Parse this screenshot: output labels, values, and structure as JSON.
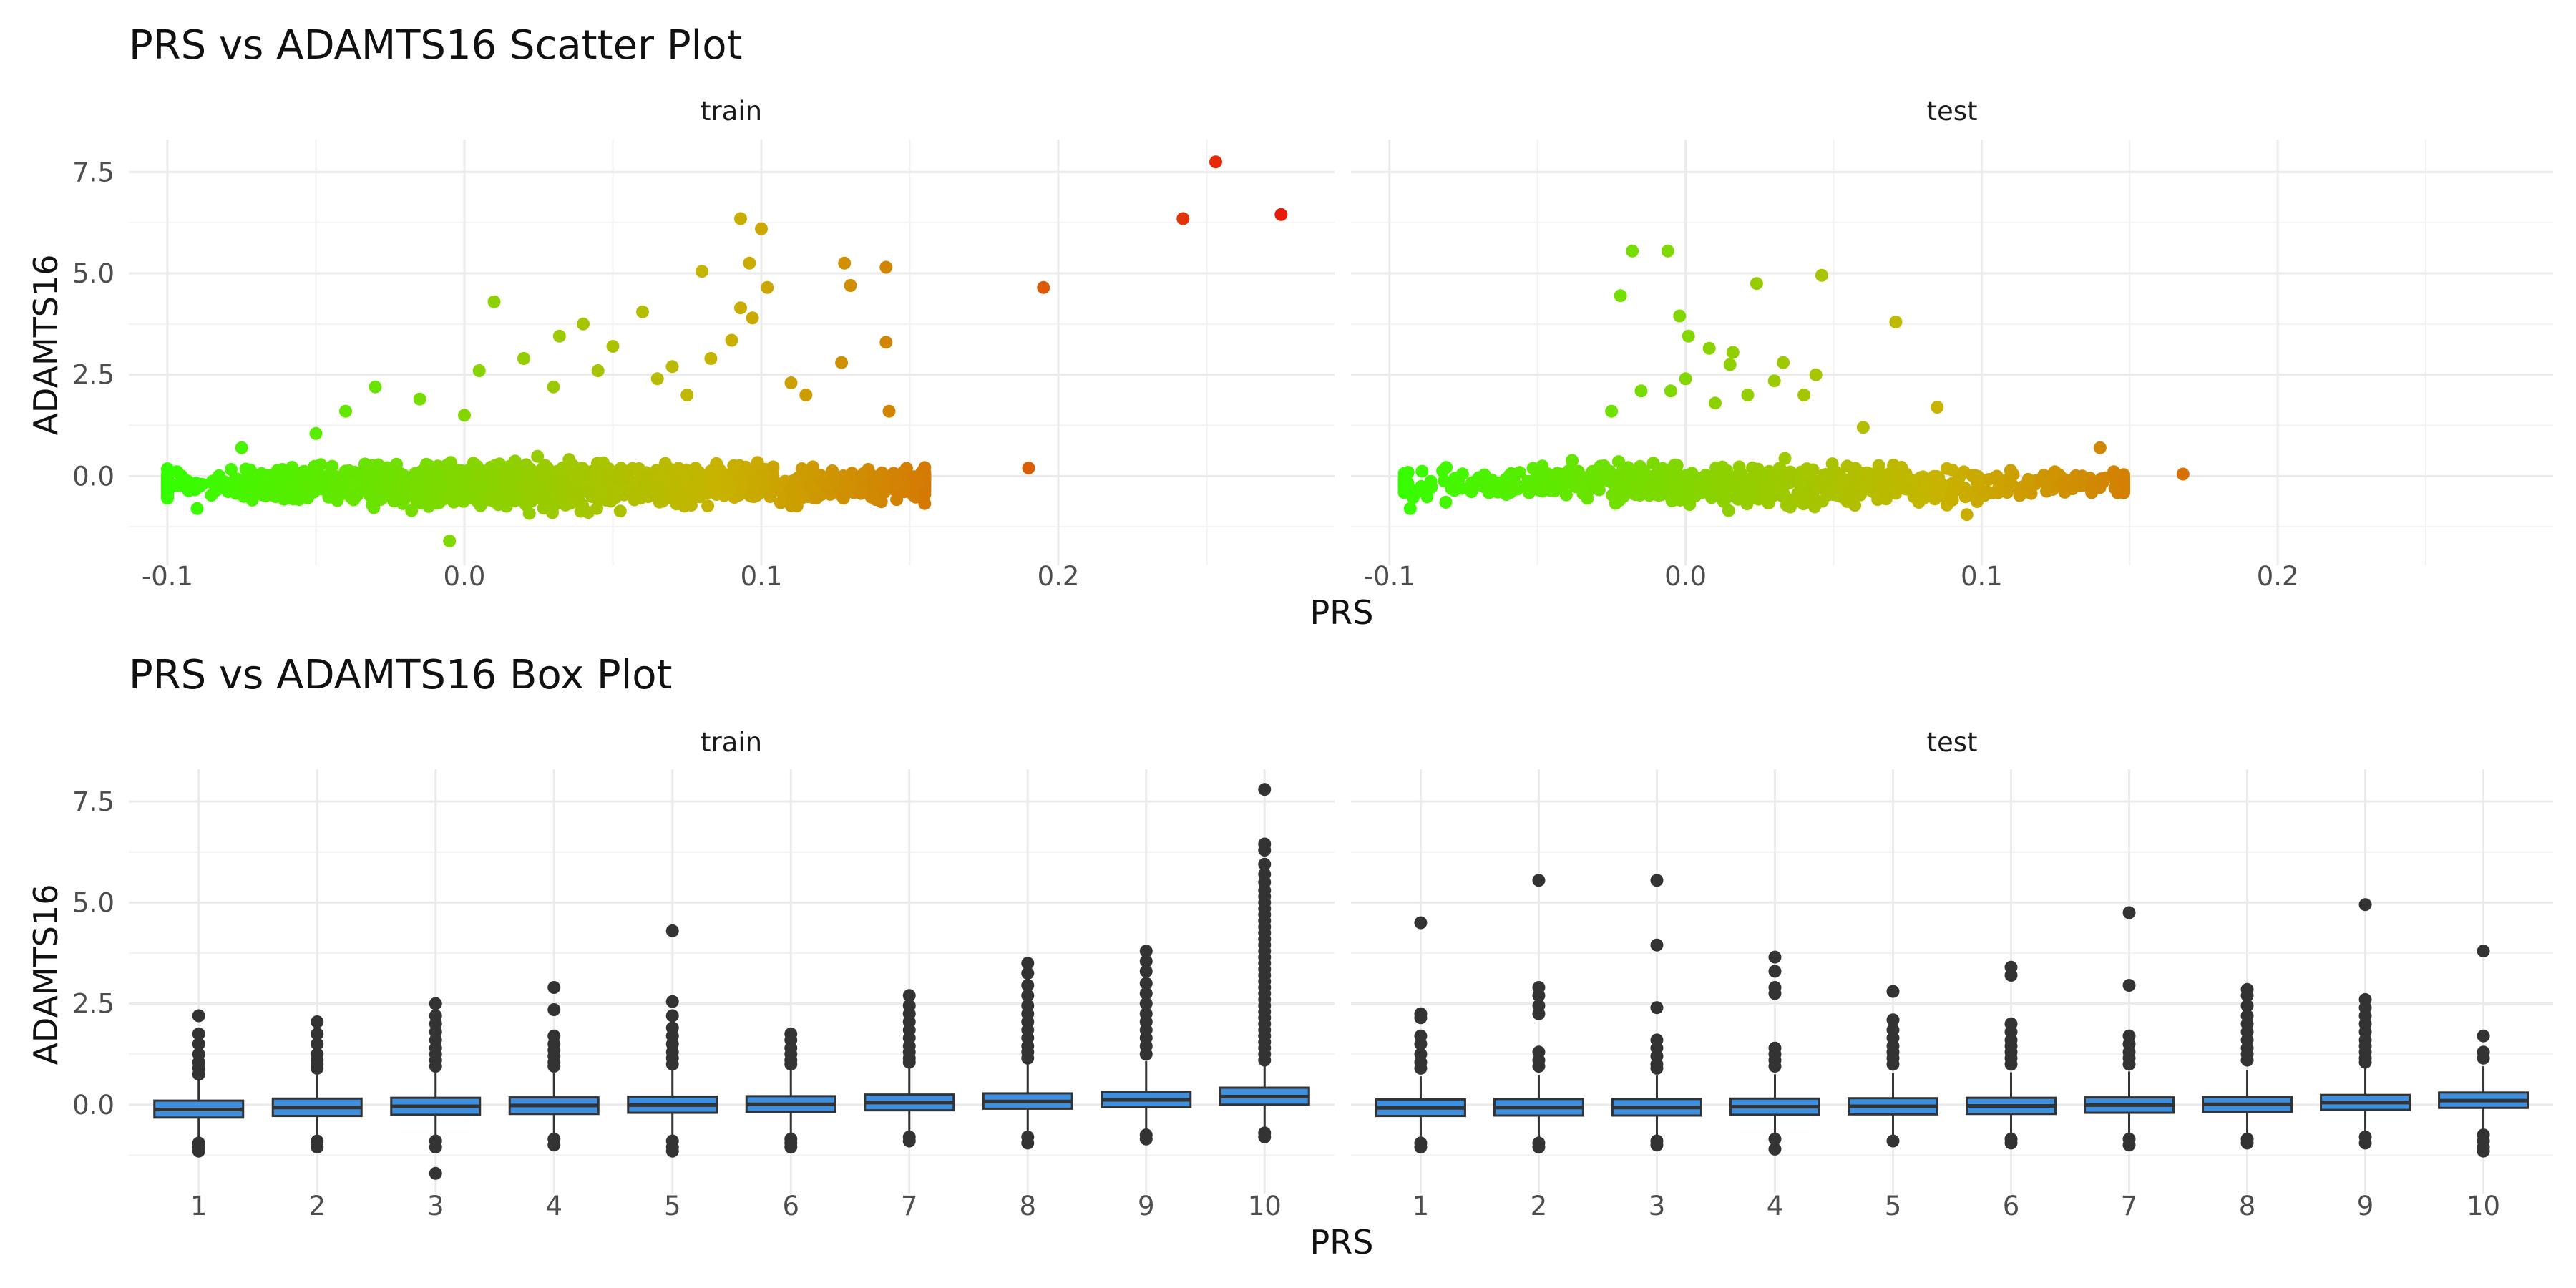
{
  "chart_data": [
    {
      "type": "scatter",
      "title": "PRS vs ADAMTS16 Scatter Plot",
      "xlabel": "PRS",
      "ylabel": "ADAMTS16",
      "x_ticks": [
        "-0.1",
        "0.0",
        "0.1",
        "0.2"
      ],
      "y_ticks": [
        "0.0",
        "2.5",
        "5.0",
        "7.5"
      ],
      "xlim": [
        -0.113,
        0.293
      ],
      "ylim": [
        -2.2,
        8.3
      ],
      "color_scale": {
        "low": "#33ff00",
        "mid": "#c8b400",
        "high": "#e81c0a",
        "range": [
          -0.1,
          0.27
        ]
      },
      "grid": true,
      "legend": "none",
      "panels": [
        {
          "label": "train",
          "cluster": {
            "n": 1400,
            "x_range": [
              -0.1,
              0.155
            ],
            "y_center": -0.2,
            "y_spread": 0.35
          },
          "outliers": [
            [
              0.253,
              7.75
            ],
            [
              0.242,
              6.35
            ],
            [
              0.275,
              6.45
            ],
            [
              0.195,
              4.65
            ],
            [
              0.19,
              0.2
            ],
            [
              0.093,
              6.35
            ],
            [
              0.1,
              6.1
            ],
            [
              0.096,
              5.25
            ],
            [
              0.08,
              5.05
            ],
            [
              0.128,
              5.25
            ],
            [
              0.142,
              5.15
            ],
            [
              0.13,
              4.7
            ],
            [
              0.102,
              4.65
            ],
            [
              0.093,
              4.15
            ],
            [
              0.097,
              3.9
            ],
            [
              0.142,
              3.3
            ],
            [
              0.127,
              2.8
            ],
            [
              0.143,
              1.6
            ],
            [
              0.09,
              3.35
            ],
            [
              0.06,
              4.05
            ],
            [
              0.01,
              4.3
            ],
            [
              0.04,
              3.75
            ],
            [
              0.032,
              3.45
            ],
            [
              0.05,
              3.2
            ],
            [
              0.07,
              2.7
            ],
            [
              0.083,
              2.9
            ],
            [
              0.11,
              2.3
            ],
            [
              0.115,
              2.0
            ],
            [
              0.065,
              2.4
            ],
            [
              0.02,
              2.9
            ],
            [
              0.005,
              2.6
            ],
            [
              0.03,
              2.2
            ],
            [
              -0.03,
              2.2
            ],
            [
              -0.015,
              1.9
            ],
            [
              -0.04,
              1.6
            ],
            [
              -0.05,
              1.05
            ],
            [
              -0.075,
              0.7
            ],
            [
              0.0,
              1.5
            ],
            [
              -0.005,
              -1.6
            ],
            [
              0.153,
              -0.15
            ],
            [
              -0.09,
              -0.8
            ],
            [
              -0.1,
              -0.3
            ],
            [
              0.146,
              -0.2
            ],
            [
              0.045,
              2.6
            ],
            [
              0.075,
              2.0
            ]
          ]
        },
        {
          "label": "test",
          "cluster": {
            "n": 700,
            "x_range": [
              -0.095,
              0.148
            ],
            "y_center": -0.2,
            "y_spread": 0.33
          },
          "outliers": [
            [
              -0.018,
              5.55
            ],
            [
              -0.006,
              5.55
            ],
            [
              0.046,
              4.95
            ],
            [
              -0.022,
              4.45
            ],
            [
              0.024,
              4.75
            ],
            [
              0.071,
              3.8
            ],
            [
              -0.002,
              3.95
            ],
            [
              0.001,
              3.45
            ],
            [
              0.015,
              2.75
            ],
            [
              0.033,
              2.8
            ],
            [
              0.044,
              2.5
            ],
            [
              -0.015,
              2.1
            ],
            [
              -0.025,
              1.6
            ],
            [
              0.008,
              3.15
            ],
            [
              0.016,
              3.05
            ],
            [
              0.03,
              2.35
            ],
            [
              0.021,
              2.0
            ],
            [
              0.0,
              2.4
            ],
            [
              0.085,
              1.7
            ],
            [
              0.168,
              0.05
            ],
            [
              0.145,
              -0.3
            ],
            [
              0.14,
              0.7
            ],
            [
              -0.093,
              -0.8
            ],
            [
              -0.092,
              -0.5
            ],
            [
              0.04,
              2.0
            ],
            [
              0.01,
              1.8
            ],
            [
              -0.005,
              2.1
            ],
            [
              0.06,
              1.2
            ],
            [
              0.134,
              0.0
            ],
            [
              0.095,
              -0.95
            ]
          ]
        }
      ]
    },
    {
      "type": "box",
      "title": "PRS vs ADAMTS16 Box Plot",
      "xlabel": "PRS",
      "ylabel": "ADAMTS16",
      "categories": [
        "1",
        "2",
        "3",
        "4",
        "5",
        "6",
        "7",
        "8",
        "9",
        "10"
      ],
      "y_ticks": [
        "0.0",
        "2.5",
        "5.0",
        "7.5"
      ],
      "ylim": [
        -2.2,
        8.3
      ],
      "box_color": "#3d8fe0",
      "grid": true,
      "panels": [
        {
          "label": "train",
          "boxes": [
            {
              "q1": -0.32,
              "median": -0.12,
              "q3": 0.1,
              "lo": -0.85,
              "hi": 0.62,
              "outliers": [
                2.2,
                1.75,
                1.5,
                1.25,
                1.05,
                0.9,
                0.75,
                -0.95,
                -1.05,
                -1.15
              ]
            },
            {
              "q1": -0.28,
              "median": -0.07,
              "q3": 0.15,
              "lo": -0.8,
              "hi": 0.75,
              "outliers": [
                2.05,
                1.75,
                1.5,
                1.25,
                1.1,
                1.0,
                0.9,
                -0.9,
                -1.05
              ]
            },
            {
              "q1": -0.25,
              "median": -0.04,
              "q3": 0.17,
              "lo": -0.8,
              "hi": 0.82,
              "outliers": [
                2.5,
                2.2,
                2.0,
                1.8,
                1.6,
                1.4,
                1.25,
                1.1,
                0.95,
                -0.9,
                -1.05,
                -1.7
              ]
            },
            {
              "q1": -0.23,
              "median": -0.02,
              "q3": 0.18,
              "lo": -0.78,
              "hi": 0.86,
              "outliers": [
                2.9,
                2.35,
                1.7,
                1.5,
                1.35,
                1.2,
                1.05,
                0.95,
                -0.85,
                -1.0
              ]
            },
            {
              "q1": -0.2,
              "median": -0.01,
              "q3": 0.2,
              "lo": -0.78,
              "hi": 0.9,
              "outliers": [
                4.3,
                2.55,
                2.2,
                1.9,
                1.7,
                1.5,
                1.3,
                1.15,
                1.0,
                -0.9,
                -1.05,
                -1.15
              ]
            },
            {
              "q1": -0.18,
              "median": 0.01,
              "q3": 0.21,
              "lo": -0.75,
              "hi": 0.92,
              "outliers": [
                1.75,
                1.6,
                1.4,
                1.25,
                1.1,
                1.0,
                -0.85,
                -0.95,
                -1.05
              ]
            },
            {
              "q1": -0.14,
              "median": 0.05,
              "q3": 0.25,
              "lo": -0.72,
              "hi": 0.98,
              "outliers": [
                2.7,
                2.45,
                2.25,
                2.05,
                1.85,
                1.65,
                1.45,
                1.3,
                1.15,
                1.05,
                -0.8,
                -0.9
              ]
            },
            {
              "q1": -0.1,
              "median": 0.08,
              "q3": 0.28,
              "lo": -0.68,
              "hi": 1.02,
              "outliers": [
                3.5,
                3.25,
                2.95,
                2.7,
                2.45,
                2.25,
                2.05,
                1.85,
                1.65,
                1.45,
                1.3,
                1.15,
                -0.8,
                -0.95
              ]
            },
            {
              "q1": -0.06,
              "median": 0.12,
              "q3": 0.32,
              "lo": -0.62,
              "hi": 1.08,
              "outliers": [
                3.8,
                3.55,
                3.3,
                3.0,
                2.75,
                2.5,
                2.25,
                2.05,
                1.85,
                1.65,
                1.45,
                1.25,
                -0.75,
                -0.85
              ]
            },
            {
              "q1": 0.0,
              "median": 0.2,
              "q3": 0.42,
              "lo": -0.55,
              "hi": 0.95,
              "outliers": [
                7.8,
                6.45,
                6.3,
                5.95,
                5.7,
                5.5,
                5.3,
                5.15,
                5.0,
                4.85,
                4.7,
                4.55,
                4.4,
                4.25,
                4.1,
                3.95,
                3.8,
                3.65,
                3.5,
                3.35,
                3.2,
                3.05,
                2.9,
                2.75,
                2.6,
                2.45,
                2.3,
                2.15,
                2.0,
                1.85,
                1.7,
                1.55,
                1.4,
                1.25,
                1.1,
                -0.7,
                -0.8
              ]
            }
          ]
        },
        {
          "label": "test",
          "boxes": [
            {
              "q1": -0.28,
              "median": -0.08,
              "q3": 0.13,
              "lo": -0.82,
              "hi": 0.7,
              "outliers": [
                4.5,
                2.25,
                2.15,
                1.7,
                1.5,
                1.25,
                1.05,
                0.9,
                -0.95,
                -1.05
              ]
            },
            {
              "q1": -0.27,
              "median": -0.07,
              "q3": 0.14,
              "lo": -0.82,
              "hi": 0.72,
              "outliers": [
                5.55,
                2.9,
                2.7,
                2.45,
                2.25,
                1.3,
                1.1,
                0.95,
                -0.95,
                -1.05
              ]
            },
            {
              "q1": -0.27,
              "median": -0.07,
              "q3": 0.14,
              "lo": -0.82,
              "hi": 0.72,
              "outliers": [
                5.55,
                3.95,
                2.4,
                1.6,
                1.4,
                1.2,
                1.0,
                0.9,
                -0.9,
                -1.0
              ]
            },
            {
              "q1": -0.25,
              "median": -0.05,
              "q3": 0.15,
              "lo": -0.8,
              "hi": 0.75,
              "outliers": [
                3.65,
                3.3,
                2.9,
                2.75,
                1.4,
                1.25,
                1.1,
                0.95,
                -0.85,
                -1.1
              ]
            },
            {
              "q1": -0.24,
              "median": -0.04,
              "q3": 0.16,
              "lo": -0.8,
              "hi": 0.78,
              "outliers": [
                2.8,
                2.1,
                1.85,
                1.65,
                1.45,
                1.3,
                1.15,
                1.0,
                -0.9
              ]
            },
            {
              "q1": -0.23,
              "median": -0.03,
              "q3": 0.17,
              "lo": -0.78,
              "hi": 0.8,
              "outliers": [
                3.4,
                3.2,
                2.0,
                1.8,
                1.6,
                1.45,
                1.3,
                1.15,
                1.0,
                -0.85,
                -0.95
              ]
            },
            {
              "q1": -0.2,
              "median": -0.01,
              "q3": 0.18,
              "lo": -0.76,
              "hi": 0.82,
              "outliers": [
                4.75,
                2.95,
                1.7,
                1.5,
                1.3,
                1.15,
                1.0,
                -0.85,
                -1.0
              ]
            },
            {
              "q1": -0.18,
              "median": 0.01,
              "q3": 0.19,
              "lo": -0.75,
              "hi": 0.86,
              "outliers": [
                2.85,
                2.7,
                2.45,
                2.2,
                2.0,
                1.8,
                1.6,
                1.4,
                1.25,
                1.1,
                -0.85,
                -0.95
              ]
            },
            {
              "q1": -0.13,
              "median": 0.05,
              "q3": 0.24,
              "lo": -0.72,
              "hi": 0.92,
              "outliers": [
                4.95,
                2.6,
                2.4,
                2.2,
                2.0,
                1.8,
                1.6,
                1.45,
                1.3,
                1.15,
                1.05,
                -0.8,
                -0.95
              ]
            },
            {
              "q1": -0.08,
              "median": 0.1,
              "q3": 0.3,
              "lo": -0.65,
              "hi": 0.95,
              "outliers": [
                3.8,
                1.7,
                1.3,
                1.15,
                -0.75,
                -0.9,
                -1.05,
                -1.15
              ]
            }
          ]
        }
      ]
    }
  ]
}
